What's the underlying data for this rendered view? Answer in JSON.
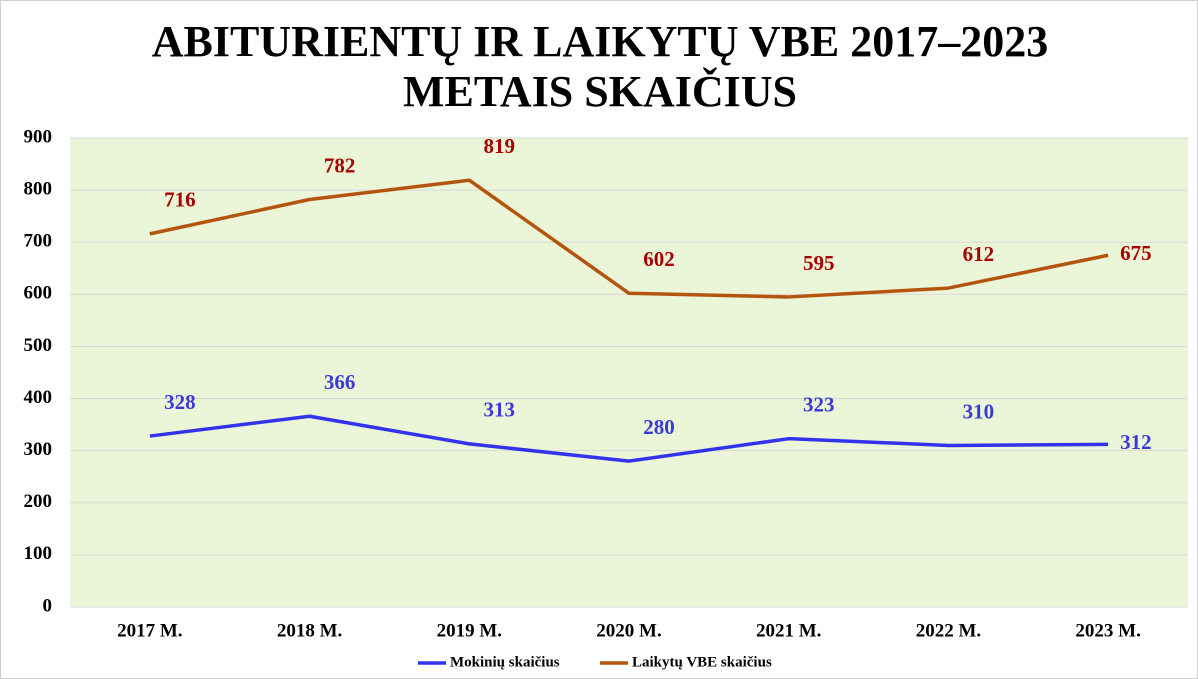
{
  "chart_data": {
    "type": "line",
    "title": [
      "ABITURIENTŲ IR LAIKYTŲ VBE 2017–2023",
      "METAIS SKAIČIUS"
    ],
    "categories": [
      "2017 M.",
      "2018 M.",
      "2019 M.",
      "2020 M.",
      "2021 M.",
      "2022 M.",
      "2023 M."
    ],
    "series": [
      {
        "name": "Mokinių skaičius",
        "color": "#3333ee",
        "values": [
          328,
          366,
          313,
          280,
          323,
          310,
          312
        ]
      },
      {
        "name": "Laikytų VBE skaičius",
        "color": "#b5540f",
        "values": [
          716,
          782,
          819,
          602,
          595,
          612,
          675
        ]
      }
    ],
    "ylim": [
      0,
      900
    ],
    "yticks": [
      0,
      100,
      200,
      300,
      400,
      500,
      600,
      700,
      800,
      900
    ],
    "grid": true,
    "plot_background": "#ebf5d7",
    "legend": "bottom"
  }
}
